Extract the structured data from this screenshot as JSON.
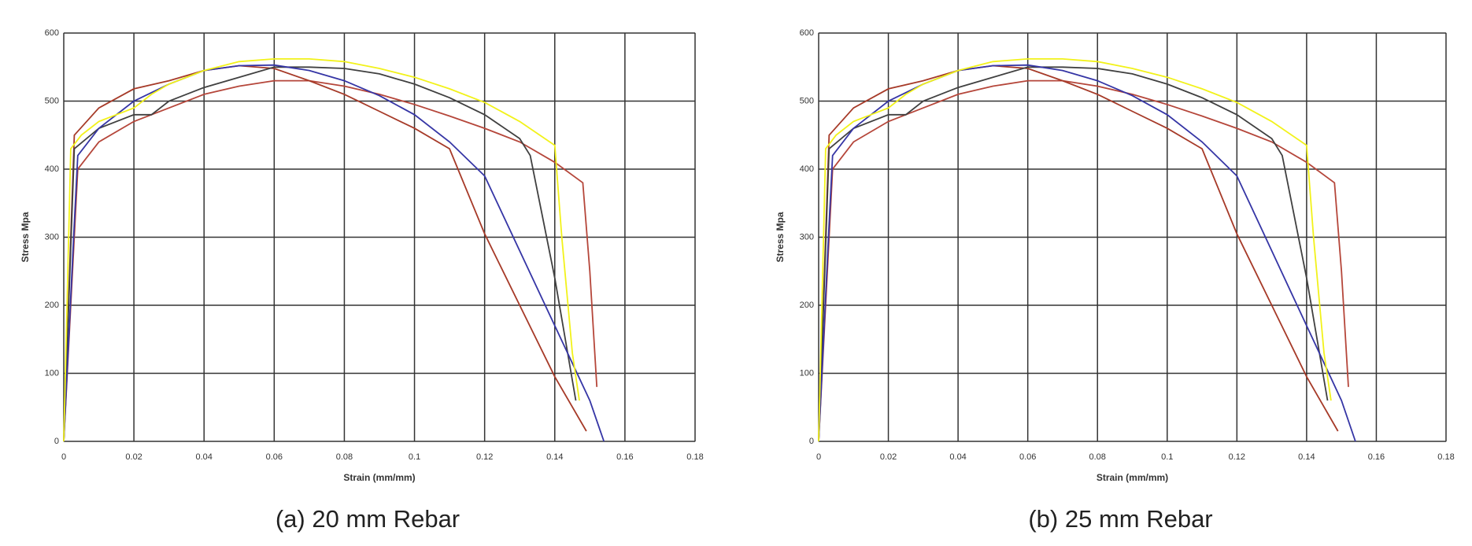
{
  "chart_data": [
    {
      "type": "line",
      "caption": "(a) 20 mm Rebar",
      "xlabel": "Strain (mm/mm)",
      "ylabel": "Stress Mpa",
      "xlim": [
        0,
        0.18
      ],
      "ylim": [
        0,
        600
      ],
      "xticks": [
        0,
        0.02,
        0.04,
        0.06,
        0.08,
        0.1,
        0.12,
        0.14,
        0.16,
        0.18
      ],
      "yticks": [
        0,
        100,
        200,
        300,
        400,
        500,
        600
      ],
      "grid": true,
      "series": [
        {
          "color": "#b5463a",
          "x": [
            0,
            0.004,
            0.01,
            0.02,
            0.03,
            0.04,
            0.05,
            0.06,
            0.07,
            0.08,
            0.09,
            0.1,
            0.11,
            0.12,
            0.13,
            0.14,
            0.148,
            0.15,
            0.152
          ],
          "values": [
            0,
            400,
            440,
            470,
            490,
            510,
            522,
            530,
            530,
            522,
            510,
            495,
            478,
            460,
            440,
            410,
            380,
            250,
            80
          ]
        },
        {
          "color": "#a63a28",
          "x": [
            0,
            0.003,
            0.01,
            0.02,
            0.03,
            0.04,
            0.05,
            0.06,
            0.07,
            0.08,
            0.09,
            0.1,
            0.11,
            0.12,
            0.13,
            0.14,
            0.149
          ],
          "values": [
            0,
            450,
            490,
            518,
            530,
            545,
            552,
            548,
            530,
            510,
            485,
            460,
            430,
            305,
            200,
            95,
            15
          ]
        },
        {
          "color": "#404040",
          "x": [
            0,
            0.003,
            0.01,
            0.02,
            0.025,
            0.03,
            0.04,
            0.05,
            0.06,
            0.07,
            0.08,
            0.09,
            0.1,
            0.11,
            0.12,
            0.13,
            0.133,
            0.14,
            0.146
          ],
          "values": [
            0,
            430,
            460,
            480,
            480,
            500,
            520,
            535,
            550,
            550,
            548,
            540,
            525,
            505,
            480,
            445,
            420,
            240,
            60
          ]
        },
        {
          "color": "#3535a5",
          "x": [
            0,
            0.003,
            0.004,
            0.01,
            0.02,
            0.03,
            0.04,
            0.05,
            0.06,
            0.07,
            0.08,
            0.09,
            0.1,
            0.11,
            0.12,
            0.13,
            0.14,
            0.15,
            0.154
          ],
          "values": [
            0,
            320,
            420,
            460,
            500,
            525,
            545,
            552,
            553,
            545,
            530,
            508,
            480,
            440,
            390,
            280,
            170,
            60,
            0
          ]
        },
        {
          "color": "#f2f21a",
          "x": [
            0,
            0.002,
            0.005,
            0.01,
            0.015,
            0.02,
            0.025,
            0.03,
            0.04,
            0.05,
            0.06,
            0.07,
            0.08,
            0.09,
            0.1,
            0.11,
            0.12,
            0.13,
            0.14,
            0.142,
            0.145,
            0.147
          ],
          "values": [
            0,
            430,
            450,
            470,
            480,
            490,
            510,
            525,
            545,
            558,
            562,
            562,
            558,
            548,
            535,
            518,
            498,
            470,
            435,
            300,
            130,
            60
          ]
        }
      ]
    },
    {
      "type": "line",
      "caption": "(b) 25 mm Rebar",
      "xlabel": "Strain (mm/mm)",
      "ylabel": "Stress Mpa",
      "xlim": [
        0,
        0.18
      ],
      "ylim": [
        0,
        600
      ],
      "xticks": [
        0,
        0.02,
        0.04,
        0.06,
        0.08,
        0.1,
        0.12,
        0.14,
        0.16,
        0.18
      ],
      "yticks": [
        0,
        100,
        200,
        300,
        400,
        500,
        600
      ],
      "grid": true,
      "series": [
        {
          "color": "#b5463a",
          "x": [
            0,
            0.004,
            0.01,
            0.02,
            0.03,
            0.04,
            0.05,
            0.06,
            0.07,
            0.08,
            0.09,
            0.1,
            0.11,
            0.12,
            0.13,
            0.14,
            0.148,
            0.15,
            0.152
          ],
          "values": [
            0,
            400,
            440,
            470,
            490,
            510,
            522,
            530,
            530,
            522,
            510,
            495,
            478,
            460,
            440,
            410,
            380,
            250,
            80
          ]
        },
        {
          "color": "#a63a28",
          "x": [
            0,
            0.003,
            0.01,
            0.02,
            0.03,
            0.04,
            0.05,
            0.06,
            0.07,
            0.08,
            0.09,
            0.1,
            0.11,
            0.12,
            0.13,
            0.14,
            0.149
          ],
          "values": [
            0,
            450,
            490,
            518,
            530,
            545,
            552,
            548,
            530,
            510,
            485,
            460,
            430,
            305,
            200,
            95,
            15
          ]
        },
        {
          "color": "#404040",
          "x": [
            0,
            0.003,
            0.01,
            0.02,
            0.025,
            0.03,
            0.04,
            0.05,
            0.06,
            0.07,
            0.08,
            0.09,
            0.1,
            0.11,
            0.12,
            0.13,
            0.133,
            0.14,
            0.146
          ],
          "values": [
            0,
            430,
            460,
            480,
            480,
            500,
            520,
            535,
            550,
            550,
            548,
            540,
            525,
            505,
            480,
            445,
            420,
            240,
            60
          ]
        },
        {
          "color": "#3535a5",
          "x": [
            0,
            0.003,
            0.004,
            0.01,
            0.02,
            0.03,
            0.04,
            0.05,
            0.06,
            0.07,
            0.08,
            0.09,
            0.1,
            0.11,
            0.12,
            0.13,
            0.14,
            0.15,
            0.154
          ],
          "values": [
            0,
            320,
            420,
            460,
            500,
            525,
            545,
            552,
            553,
            545,
            530,
            508,
            480,
            440,
            390,
            280,
            170,
            60,
            0
          ]
        },
        {
          "color": "#f2f21a",
          "x": [
            0,
            0.002,
            0.005,
            0.01,
            0.015,
            0.02,
            0.025,
            0.03,
            0.04,
            0.05,
            0.06,
            0.07,
            0.08,
            0.09,
            0.1,
            0.11,
            0.12,
            0.13,
            0.14,
            0.142,
            0.145,
            0.147
          ],
          "values": [
            0,
            430,
            450,
            470,
            480,
            490,
            510,
            525,
            545,
            558,
            562,
            562,
            558,
            548,
            535,
            518,
            498,
            470,
            435,
            300,
            130,
            60
          ]
        }
      ]
    }
  ]
}
